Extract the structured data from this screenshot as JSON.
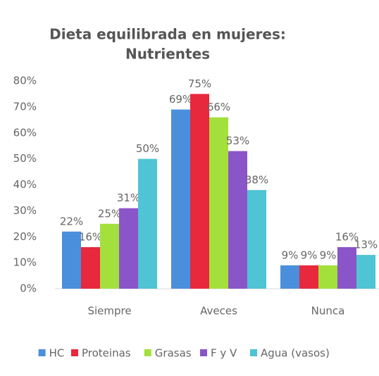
{
  "chart_data": {
    "type": "bar",
    "title": [
      "Dieta equilibrada en mujeres:",
      "Nutrientes"
    ],
    "categories": [
      "Siempre",
      "Aveces",
      "Nunca"
    ],
    "series": [
      {
        "name": "HC",
        "color": "#4a8fdc",
        "values": [
          22,
          69,
          9
        ],
        "value_labels": [
          "22%",
          "69%",
          "9%"
        ]
      },
      {
        "name": "Proteinas",
        "color": "#e8283c",
        "values": [
          16,
          75,
          9
        ],
        "value_labels": [
          "16%",
          "75%",
          "9%"
        ]
      },
      {
        "name": "Grasas",
        "color": "#a4e03c",
        "values": [
          25,
          66,
          9
        ],
        "value_labels": [
          "25%",
          "66%",
          "9%"
        ]
      },
      {
        "name": "F y V",
        "color": "#8a55c8",
        "values": [
          31,
          53,
          16
        ],
        "value_labels": [
          "31%",
          "53%",
          "16%"
        ]
      },
      {
        "name": "Agua (vasos)",
        "color": "#4ec4d4",
        "values": [
          50,
          38,
          13
        ],
        "value_labels": [
          "50%",
          "38%",
          "13%"
        ]
      }
    ],
    "ylim": [
      0,
      80
    ],
    "yticks": [
      {
        "value": 0,
        "label": "0%"
      },
      {
        "value": 10,
        "label": "10%"
      },
      {
        "value": 20,
        "label": "20%"
      },
      {
        "value": 30,
        "label": "30%"
      },
      {
        "value": 40,
        "label": "40%"
      },
      {
        "value": 50,
        "label": "50%"
      },
      {
        "value": 60,
        "label": "60%"
      },
      {
        "value": 70,
        "label": "70%"
      },
      {
        "value": 80,
        "label": "80%"
      }
    ],
    "grid": false,
    "legend": "bottom"
  }
}
